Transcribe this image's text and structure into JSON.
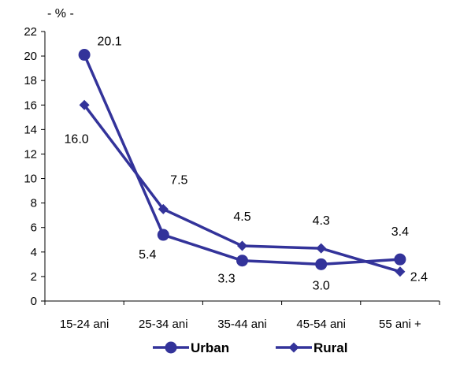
{
  "chart_data": {
    "type": "line",
    "unit_label": "- % -",
    "categories": [
      "15-24 ani",
      "25-34 ani",
      "35-44 ani",
      "45-54 ani",
      "55 ani +"
    ],
    "ylim": [
      0,
      22
    ],
    "yticks": [
      "0",
      "2",
      "4",
      "6",
      "8",
      "10",
      "12",
      "14",
      "16",
      "18",
      "20",
      "22"
    ],
    "grid": false,
    "legend_position": "bottom",
    "line_color": "#33339A",
    "series": [
      {
        "name": "Urban",
        "marker": "circle",
        "values": [
          20.1,
          5.4,
          3.3,
          3.0,
          3.4
        ],
        "labels": [
          "20.1",
          "5.4",
          "3.3",
          "3.0",
          "3.4"
        ]
      },
      {
        "name": "Rural",
        "marker": "diamond",
        "values": [
          16.0,
          7.5,
          4.5,
          4.3,
          2.4
        ],
        "labels": [
          "16.0",
          "7.5",
          "4.5",
          "4.3",
          "2.4"
        ]
      }
    ]
  }
}
